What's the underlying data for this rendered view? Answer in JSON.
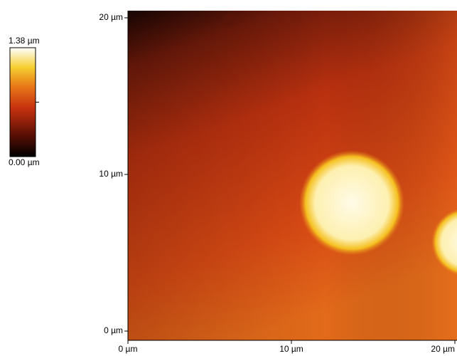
{
  "chart_data": {
    "type": "image",
    "xlim": [
      0,
      20
    ],
    "xticks": [
      {
        "value": 0,
        "label": "0 µm"
      },
      {
        "value": 10,
        "label": "10 µm"
      },
      {
        "value": 20,
        "label": "20 µm"
      }
    ],
    "ylim": [
      0,
      20
    ],
    "yticks": [
      {
        "value": 0,
        "label": "0 µm"
      },
      {
        "value": 10,
        "label": "10 µm"
      },
      {
        "value": 20,
        "label": "20 µm"
      }
    ],
    "zlim": [
      0,
      1.38
    ],
    "zticks": [
      {
        "value": 0,
        "label": "0.00 µm"
      },
      {
        "value": 1.38,
        "label": "1.38 µm"
      }
    ]
  }
}
